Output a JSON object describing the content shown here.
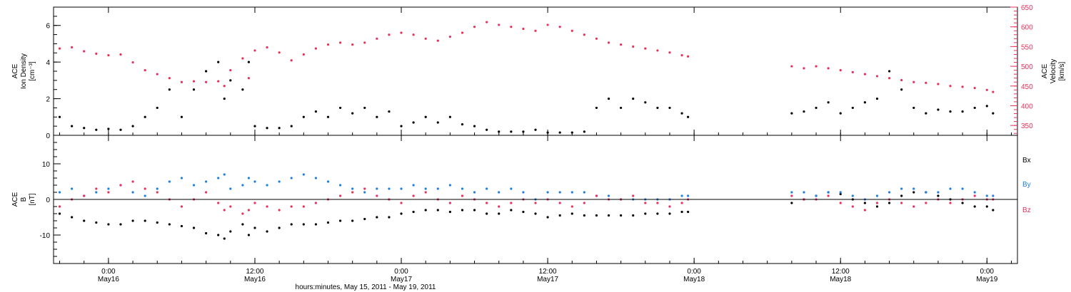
{
  "chart_data": [
    {
      "type": "scatter",
      "panel": "top",
      "ylabel_lines": [
        "ACE",
        "Ion Density",
        "[cm⁻³]"
      ],
      "y2label_lines": [
        "ACE",
        "Velocity",
        "[km/s]"
      ],
      "ylim": [
        0,
        7
      ],
      "y2lim": [
        325,
        650
      ],
      "yticks": [
        0,
        2,
        4,
        6
      ],
      "y2ticks": [
        350,
        400,
        450,
        500,
        550,
        600,
        650
      ],
      "colors": {
        "density": "#000000",
        "velocity": "#e8305a"
      },
      "series": [
        {
          "axis": "left",
          "x_hours": [
            -4,
            -3,
            -2,
            -1,
            0,
            1,
            2,
            3,
            4,
            5,
            6,
            7,
            8,
            9,
            9.5,
            10,
            11,
            11.5,
            12,
            13,
            14,
            15,
            16,
            17,
            18,
            19,
            20,
            21,
            22,
            23,
            24,
            25,
            26,
            27,
            28,
            29,
            30,
            31,
            32,
            33,
            34,
            35,
            36,
            37,
            38,
            39,
            40,
            41,
            42,
            43,
            44,
            45,
            46,
            47,
            47.5,
            56,
            57,
            58,
            59,
            60,
            61,
            62,
            63,
            64,
            65,
            66,
            67,
            68,
            69,
            70,
            71,
            72,
            72.5
          ],
          "values": [
            1.0,
            0.5,
            0.4,
            0.3,
            0.35,
            0.3,
            0.5,
            1.0,
            1.5,
            2.5,
            1.0,
            2.5,
            3.5,
            4.0,
            2.0,
            3.0,
            2.5,
            4.0,
            0.5,
            0.4,
            0.4,
            0.5,
            1.0,
            1.3,
            1.0,
            1.5,
            1.2,
            1.5,
            1.0,
            1.3,
            0.5,
            0.7,
            1.0,
            0.7,
            1.0,
            0.6,
            0.5,
            0.3,
            0.2,
            0.2,
            0.2,
            0.3,
            0.15,
            0.15,
            0.15,
            0.2,
            1.5,
            2.0,
            1.5,
            2.0,
            1.8,
            1.5,
            1.5,
            1.2,
            1.0,
            1.2,
            1.3,
            1.5,
            1.8,
            1.2,
            1.5,
            1.8,
            2.0,
            3.5,
            2.5,
            1.5,
            1.2,
            1.4,
            1.3,
            1.3,
            1.5,
            1.6,
            1.2
          ]
        },
        {
          "axis": "right",
          "x_hours": [
            -4,
            -3,
            -2,
            -1,
            0,
            1,
            2,
            3,
            4,
            5,
            6,
            7,
            8,
            9,
            9.5,
            10,
            11,
            11.5,
            12,
            13,
            14,
            15,
            16,
            17,
            18,
            19,
            20,
            21,
            22,
            23,
            24,
            25,
            26,
            27,
            28,
            29,
            30,
            31,
            32,
            33,
            34,
            35,
            36,
            37,
            38,
            39,
            40,
            41,
            42,
            43,
            44,
            45,
            46,
            47,
            47.5,
            56,
            57,
            58,
            59,
            60,
            61,
            62,
            63,
            64,
            65,
            66,
            67,
            68,
            69,
            70,
            71,
            72,
            72.5
          ],
          "values": [
            545,
            548,
            538,
            532,
            528,
            530,
            510,
            490,
            480,
            470,
            460,
            462,
            460,
            462,
            450,
            490,
            520,
            470,
            540,
            548,
            535,
            515,
            530,
            545,
            555,
            560,
            555,
            560,
            570,
            580,
            585,
            580,
            570,
            565,
            575,
            585,
            600,
            612,
            605,
            600,
            595,
            590,
            605,
            600,
            590,
            580,
            570,
            560,
            555,
            550,
            545,
            540,
            535,
            528,
            525,
            500,
            495,
            500,
            495,
            490,
            485,
            480,
            475,
            470,
            465,
            460,
            458,
            455,
            450,
            448,
            445,
            440,
            435
          ]
        }
      ]
    },
    {
      "type": "scatter",
      "panel": "bottom",
      "ylabel_lines": [
        "ACE",
        "B",
        "[nT]"
      ],
      "ylim": [
        -18,
        18
      ],
      "yticks": [
        -10,
        0,
        10
      ],
      "legend": [
        "Bx",
        "By",
        "Bz"
      ],
      "colors": {
        "Bx": "#000000",
        "By": "#1e7fe0",
        "Bz": "#e8305a"
      },
      "series": [
        {
          "name": "Bx",
          "x_hours": [
            -4,
            -3,
            -2,
            -1,
            0,
            1,
            2,
            3,
            4,
            5,
            6,
            7,
            8,
            9,
            9.5,
            10,
            11,
            11.5,
            12,
            13,
            14,
            15,
            16,
            17,
            18,
            19,
            20,
            21,
            22,
            23,
            24,
            25,
            26,
            27,
            28,
            29,
            30,
            31,
            32,
            33,
            34,
            35,
            36,
            37,
            38,
            39,
            40,
            41,
            42,
            43,
            44,
            45,
            46,
            47,
            47.5,
            56,
            57,
            58,
            59,
            60,
            61,
            62,
            63,
            64,
            65,
            66,
            67,
            68,
            69,
            70,
            71,
            72,
            72.5
          ],
          "values": [
            -4,
            -5,
            -6,
            -6.5,
            -7,
            -7,
            -6,
            -6,
            -6.5,
            -7,
            -7.5,
            -8,
            -9.5,
            -10,
            -11,
            -9,
            -7,
            -10,
            -8,
            -9,
            -8,
            -7,
            -7,
            -7,
            -6.5,
            -6,
            -6,
            -5.5,
            -5,
            -5,
            -4,
            -3.5,
            -3,
            -3,
            -3.5,
            -3,
            -3,
            -4,
            -4,
            -3,
            -3.5,
            -4,
            -5,
            -4.5,
            -4,
            -4.5,
            -4.5,
            -4.5,
            -4.5,
            -4.5,
            -4,
            -4,
            -4,
            -3.5,
            -3.5,
            -1,
            0,
            1,
            2,
            1.5,
            0,
            -1,
            -2,
            -1,
            1,
            2,
            2,
            1,
            0,
            -1,
            -2,
            -2,
            -3
          ]
        },
        {
          "name": "By",
          "x_hours": [
            -4,
            -3,
            -2,
            -1,
            0,
            1,
            2,
            3,
            4,
            5,
            6,
            7,
            8,
            9,
            9.5,
            10,
            11,
            11.5,
            12,
            13,
            14,
            15,
            16,
            17,
            18,
            19,
            20,
            21,
            22,
            23,
            24,
            25,
            26,
            27,
            28,
            29,
            30,
            31,
            32,
            33,
            34,
            35,
            36,
            37,
            38,
            39,
            40,
            41,
            42,
            43,
            44,
            45,
            46,
            47,
            47.5,
            56,
            57,
            58,
            59,
            60,
            61,
            62,
            63,
            64,
            65,
            66,
            67,
            68,
            69,
            70,
            71,
            72,
            72.5
          ],
          "values": [
            2,
            3,
            1,
            2,
            3,
            4,
            2,
            1,
            3,
            5,
            6,
            4,
            5,
            6,
            7,
            3,
            4,
            6,
            5,
            4,
            5,
            6,
            7,
            6,
            5,
            4,
            3,
            2,
            3,
            3,
            3,
            4,
            3,
            3,
            4,
            3,
            2,
            3,
            2,
            3,
            2,
            0,
            2,
            2,
            2,
            2,
            1,
            1,
            0,
            0,
            0,
            0,
            0,
            1,
            1,
            2,
            2,
            1,
            2,
            2,
            1,
            0,
            1,
            2,
            3,
            3,
            2,
            2,
            3,
            3,
            2,
            1,
            1
          ]
        },
        {
          "name": "Bz",
          "x_hours": [
            -4,
            -3,
            -2,
            -1,
            0,
            1,
            2,
            3,
            4,
            5,
            6,
            7,
            8,
            9,
            9.5,
            10,
            11,
            11.5,
            12,
            13,
            14,
            15,
            16,
            17,
            18,
            19,
            20,
            21,
            22,
            23,
            24,
            25,
            26,
            27,
            28,
            29,
            30,
            31,
            32,
            33,
            34,
            35,
            36,
            37,
            38,
            39,
            40,
            41,
            42,
            43,
            44,
            45,
            46,
            47,
            47.5,
            56,
            57,
            58,
            59,
            60,
            61,
            62,
            63,
            64,
            65,
            66,
            67,
            68,
            69,
            70,
            71,
            72,
            72.5
          ],
          "values": [
            -2,
            0,
            1,
            3,
            2,
            4,
            5,
            3,
            2,
            0,
            -2,
            0,
            2,
            -1,
            -3,
            -2,
            -4,
            -3,
            -1,
            -2,
            -3,
            -2,
            -2,
            -1,
            0,
            1,
            2,
            3,
            1,
            0,
            -1,
            1,
            2,
            0,
            -1,
            1,
            0,
            -1,
            -2,
            -1,
            0,
            -1,
            0,
            -1,
            -2,
            -1,
            1,
            0,
            0,
            1,
            -1,
            -1,
            -2,
            -1,
            0,
            1,
            0,
            0,
            1,
            -1,
            -2,
            -3,
            -1,
            0,
            -1,
            -2,
            -1,
            0,
            -1,
            0,
            1,
            0,
            0
          ]
        }
      ]
    }
  ],
  "xaxis": {
    "range_hours": [
      -4.5,
      74.5
    ],
    "ticks": [
      {
        "h": 0,
        "time": "0:00",
        "date": "May16"
      },
      {
        "h": 12,
        "time": "12:00",
        "date": "May16"
      },
      {
        "h": 24,
        "time": "0:00",
        "date": "May17"
      },
      {
        "h": 36,
        "time": "12:00",
        "date": "May17"
      },
      {
        "h": 48,
        "time": "0:00",
        "date": "May18"
      },
      {
        "h": 60,
        "time": "12:00",
        "date": "May18"
      },
      {
        "h": 72,
        "time": "0:00",
        "date": "May19"
      }
    ],
    "label": "hours:minutes, May 15, 2011 - May 19, 2011"
  }
}
